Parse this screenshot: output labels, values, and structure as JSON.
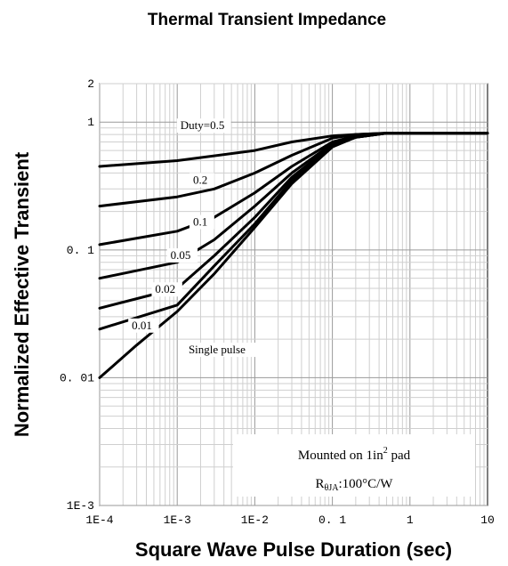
{
  "chart_data": {
    "type": "line",
    "title": "Thermal Transient Impedance",
    "xlabel": "Square Wave Pulse Duration (sec)",
    "ylabel": "Normalized Effective Transient",
    "x_scale": "log",
    "y_scale": "log",
    "xlim": [
      0.0001,
      10
    ],
    "ylim": [
      0.001,
      2
    ],
    "x_tick_labels": [
      "1E-4",
      "1E-3",
      "1E-2",
      "0. 1",
      "1",
      "10"
    ],
    "y_tick_labels": [
      "2",
      "1",
      "0. 1",
      "0. 01",
      "1E-3"
    ],
    "grid": true,
    "series": [
      {
        "name": "Duty=0.5",
        "x": [
          0.0001,
          0.001,
          0.01,
          0.03,
          0.1,
          0.2,
          0.5,
          1,
          10
        ],
        "y": [
          0.45,
          0.5,
          0.6,
          0.7,
          0.78,
          0.8,
          0.82,
          0.82,
          0.82
        ]
      },
      {
        "name": "0.2",
        "x": [
          0.0001,
          0.001,
          0.003,
          0.01,
          0.03,
          0.1,
          0.2,
          0.5,
          1,
          10
        ],
        "y": [
          0.22,
          0.26,
          0.3,
          0.4,
          0.55,
          0.75,
          0.8,
          0.82,
          0.82,
          0.82
        ]
      },
      {
        "name": "0.1",
        "x": [
          0.0001,
          0.001,
          0.003,
          0.01,
          0.03,
          0.1,
          0.2,
          0.5,
          1,
          10
        ],
        "y": [
          0.11,
          0.14,
          0.18,
          0.28,
          0.45,
          0.7,
          0.78,
          0.82,
          0.82,
          0.82
        ]
      },
      {
        "name": "0.05",
        "x": [
          0.0001,
          0.001,
          0.003,
          0.01,
          0.03,
          0.1,
          0.2,
          0.5,
          1,
          10
        ],
        "y": [
          0.06,
          0.08,
          0.12,
          0.22,
          0.4,
          0.68,
          0.77,
          0.82,
          0.82,
          0.82
        ]
      },
      {
        "name": "0.02",
        "x": [
          0.0001,
          0.001,
          0.003,
          0.01,
          0.03,
          0.1,
          0.2,
          0.5,
          1,
          10
        ],
        "y": [
          0.035,
          0.05,
          0.09,
          0.18,
          0.37,
          0.66,
          0.76,
          0.82,
          0.82,
          0.82
        ]
      },
      {
        "name": "0.01",
        "x": [
          0.0001,
          0.001,
          0.003,
          0.01,
          0.03,
          0.1,
          0.2,
          0.5,
          1,
          10
        ],
        "y": [
          0.024,
          0.037,
          0.075,
          0.16,
          0.35,
          0.65,
          0.76,
          0.82,
          0.82,
          0.82
        ]
      },
      {
        "name": "Single pulse",
        "x": [
          0.0001,
          0.0003,
          0.001,
          0.003,
          0.01,
          0.03,
          0.1,
          0.2,
          0.5,
          1,
          10
        ],
        "y": [
          0.01,
          0.018,
          0.033,
          0.065,
          0.15,
          0.33,
          0.64,
          0.76,
          0.82,
          0.82,
          0.82
        ]
      }
    ],
    "curve_labels": [
      {
        "text": "Duty=0.5",
        "x": 0.0011,
        "y": 0.88
      },
      {
        "text": "0.2",
        "x": 0.0016,
        "y": 0.33
      },
      {
        "text": "0.1",
        "x": 0.0016,
        "y": 0.155
      },
      {
        "text": "0.05",
        "x": 0.00082,
        "y": 0.085
      },
      {
        "text": "0.02",
        "x": 0.00052,
        "y": 0.046
      },
      {
        "text": "0.01",
        "x": 0.00026,
        "y": 0.024
      },
      {
        "text": "Single pulse",
        "x": 0.0014,
        "y": 0.0155
      }
    ],
    "annotation": {
      "line1_text": "Mounted on 1in",
      "line1_sup": "2",
      "line1_suffix": " pad",
      "line2_main": "R",
      "line2_sub": "θJA",
      "line2_value": ":100°C/W"
    }
  }
}
